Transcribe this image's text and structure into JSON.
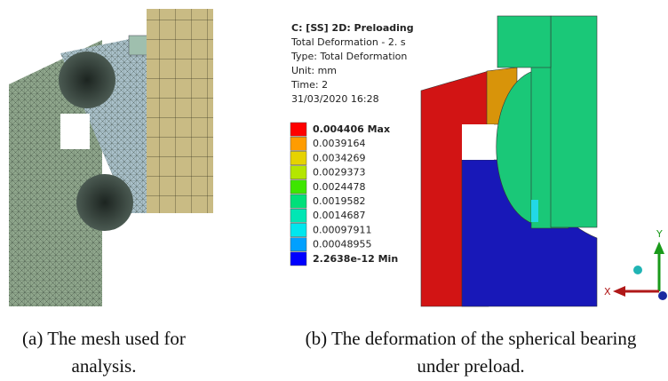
{
  "left_caption": [
    "(a) The mesh used for",
    "analysis."
  ],
  "result": {
    "title": "C: [SS] 2D: Preloading",
    "info": [
      "Total Deformation - 2. s",
      "Type: Total Deformation",
      "Unit: mm",
      "Time: 2",
      "31/03/2020 16:28"
    ],
    "legend": [
      {
        "label": "0.004406 Max",
        "color": "#ff0000"
      },
      {
        "label": "0.0039164",
        "color": "#ff9c00"
      },
      {
        "label": "0.0034269",
        "color": "#e6d200"
      },
      {
        "label": "0.0029373",
        "color": "#b4e600"
      },
      {
        "label": "0.0024478",
        "color": "#3ee600"
      },
      {
        "label": "0.0019582",
        "color": "#00e07a"
      },
      {
        "label": "0.0014687",
        "color": "#00e6b4"
      },
      {
        "label": "0.00097911",
        "color": "#00e6ee"
      },
      {
        "label": "0.00048955",
        "color": "#00a0ff"
      },
      {
        "label": "2.2638e-12 Min",
        "color": "#0000ff"
      }
    ],
    "axes": [
      "Y",
      "X"
    ]
  },
  "right_caption": [
    "(b) The deformation of the spherical bearing",
    "under preload."
  ]
}
